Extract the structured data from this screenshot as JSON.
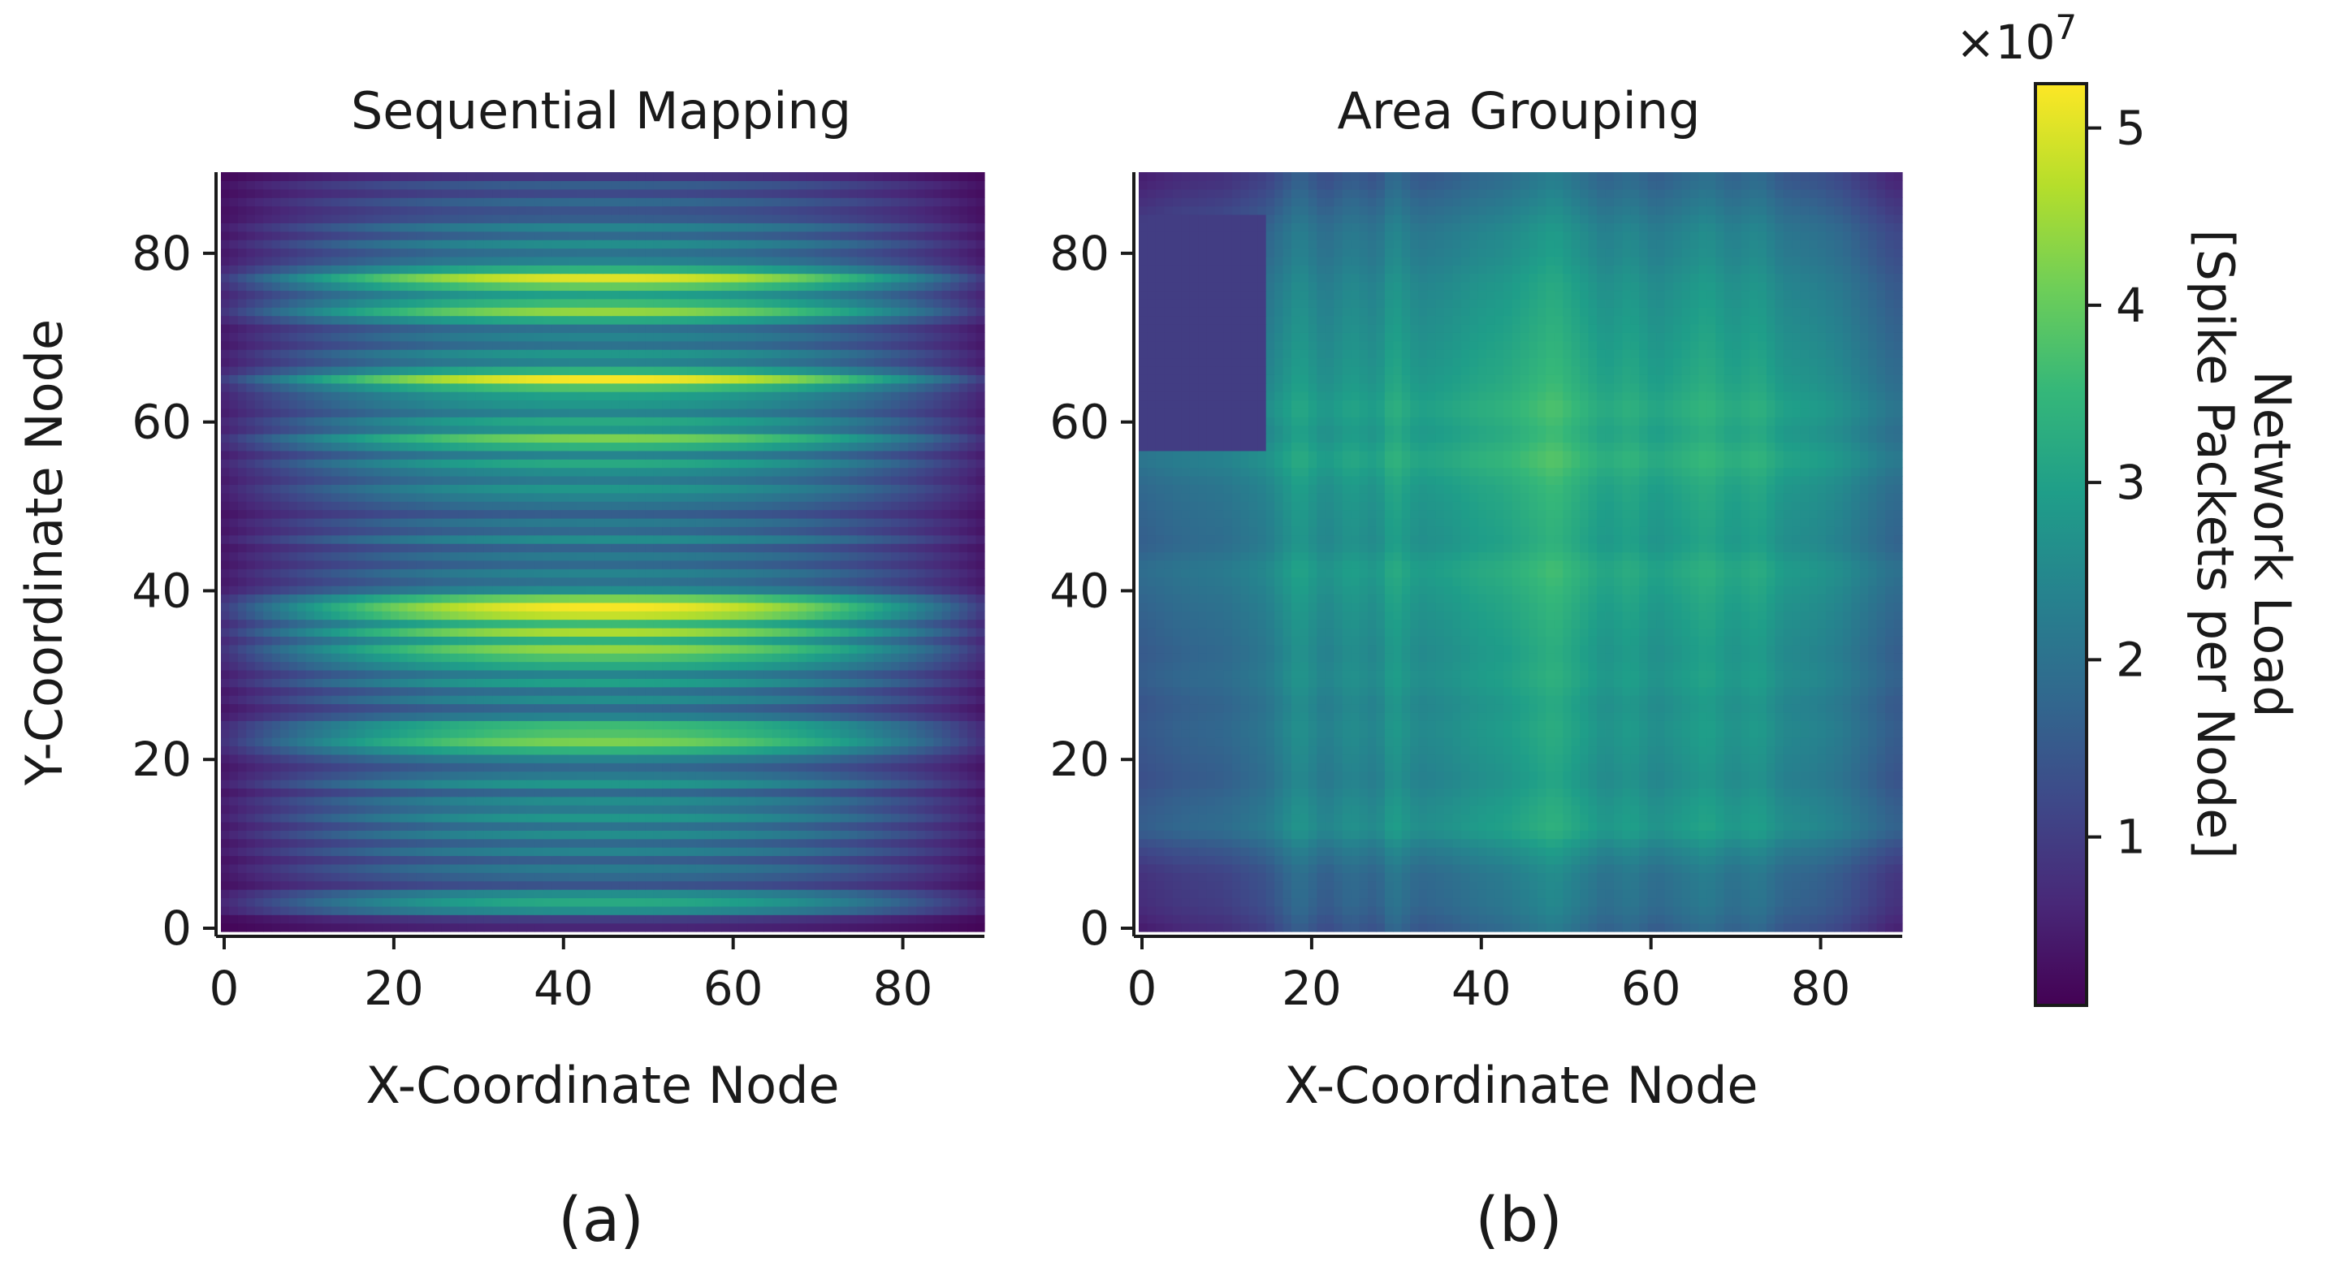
{
  "colors": {
    "viridis": [
      "#440154",
      "#482878",
      "#3e4989",
      "#31688e",
      "#26828e",
      "#1f9e89",
      "#35b779",
      "#6ece58",
      "#b5de2b",
      "#fde725"
    ],
    "axis": "#1a1a1a",
    "background": "#ffffff"
  },
  "chart_data": [
    {
      "type": "heatmap",
      "panel": "(a)",
      "title": "Sequential Mapping",
      "xlabel": "X-Coordinate Node",
      "ylabel": "Y-Coordinate Node",
      "xlim": [
        0,
        90
      ],
      "ylim": [
        0,
        90
      ],
      "xticks": [
        0,
        20,
        40,
        60,
        80
      ],
      "yticks": [
        0,
        20,
        40,
        60,
        80
      ],
      "structure": "horizontal bands; each row's load peaks near the centre column and falls off toward x=0 and x=90",
      "center_x": 45,
      "row_peak_loads": [
        [
          0,
          6000000.0
        ],
        [
          1,
          10000000.0
        ],
        [
          2,
          26000000.0
        ],
        [
          3,
          32000000.0
        ],
        [
          4,
          26000000.0
        ],
        [
          5,
          14000000.0
        ],
        [
          6,
          18000000.0
        ],
        [
          7,
          22000000.0
        ],
        [
          8,
          16000000.0
        ],
        [
          9,
          24000000.0
        ],
        [
          10,
          18000000.0
        ],
        [
          11,
          26000000.0
        ],
        [
          12,
          20000000.0
        ],
        [
          13,
          28000000.0
        ],
        [
          14,
          22000000.0
        ],
        [
          15,
          26000000.0
        ],
        [
          16,
          18000000.0
        ],
        [
          17,
          28000000.0
        ],
        [
          18,
          22000000.0
        ],
        [
          19,
          18000000.0
        ],
        [
          20,
          24000000.0
        ],
        [
          21,
          34000000.0
        ],
        [
          22,
          42000000.0
        ],
        [
          23,
          38000000.0
        ],
        [
          24,
          36000000.0
        ],
        [
          25,
          24000000.0
        ],
        [
          26,
          18000000.0
        ],
        [
          27,
          26000000.0
        ],
        [
          28,
          20000000.0
        ],
        [
          29,
          30000000.0
        ],
        [
          30,
          24000000.0
        ],
        [
          31,
          32000000.0
        ],
        [
          32,
          38000000.0
        ],
        [
          33,
          44000000.0
        ],
        [
          34,
          34000000.0
        ],
        [
          35,
          46000000.0
        ],
        [
          36,
          36000000.0
        ],
        [
          37,
          48000000.0
        ],
        [
          38,
          52000000.0
        ],
        [
          39,
          42000000.0
        ],
        [
          40,
          26000000.0
        ],
        [
          41,
          20000000.0
        ],
        [
          42,
          24000000.0
        ],
        [
          43,
          18000000.0
        ],
        [
          44,
          22000000.0
        ],
        [
          45,
          17000000.0
        ],
        [
          46,
          26000000.0
        ],
        [
          47,
          18000000.0
        ],
        [
          48,
          22000000.0
        ],
        [
          49,
          16000000.0
        ],
        [
          50,
          20000000.0
        ],
        [
          51,
          24000000.0
        ],
        [
          52,
          28000000.0
        ],
        [
          53,
          22000000.0
        ],
        [
          54,
          26000000.0
        ],
        [
          55,
          32000000.0
        ],
        [
          56,
          24000000.0
        ],
        [
          57,
          34000000.0
        ],
        [
          58,
          42000000.0
        ],
        [
          59,
          28000000.0
        ],
        [
          60,
          32000000.0
        ],
        [
          61,
          24000000.0
        ],
        [
          62,
          28000000.0
        ],
        [
          63,
          30000000.0
        ],
        [
          64,
          38000000.0
        ],
        [
          65,
          52000000.0
        ],
        [
          66,
          34000000.0
        ],
        [
          67,
          24000000.0
        ],
        [
          68,
          28000000.0
        ],
        [
          69,
          20000000.0
        ],
        [
          70,
          24000000.0
        ],
        [
          71,
          20000000.0
        ],
        [
          72,
          32000000.0
        ],
        [
          73,
          44000000.0
        ],
        [
          74,
          36000000.0
        ],
        [
          75,
          30000000.0
        ],
        [
          76,
          40000000.0
        ],
        [
          77,
          50000000.0
        ],
        [
          78,
          34000000.0
        ],
        [
          79,
          24000000.0
        ],
        [
          80,
          20000000.0
        ],
        [
          81,
          26000000.0
        ],
        [
          82,
          18000000.0
        ],
        [
          83,
          24000000.0
        ],
        [
          84,
          16000000.0
        ],
        [
          85,
          14000000.0
        ],
        [
          86,
          18000000.0
        ],
        [
          87,
          12000000.0
        ],
        [
          88,
          16000000.0
        ],
        [
          89,
          9000000.0
        ]
      ]
    },
    {
      "type": "heatmap",
      "panel": "(b)",
      "title": "Area Grouping",
      "xlabel": "X-Coordinate Node",
      "ylabel": "",
      "xlim": [
        0,
        90
      ],
      "ylim": [
        0,
        90
      ],
      "xticks": [
        0,
        20,
        40,
        60,
        80
      ],
      "yticks": [
        0,
        20,
        40,
        60,
        80
      ],
      "structure": "grid pattern: load ≈ column_weight + row_weight; low-load regions near the edges and a dark block at x<15, 57<y<85",
      "column_weights": [
        [
          0,
          2000000.0
        ],
        [
          5,
          4000000.0
        ],
        [
          10,
          5000000.0
        ],
        [
          15,
          8000000.0
        ],
        [
          19,
          14000000.0
        ],
        [
          22,
          10000000.0
        ],
        [
          25,
          13000000.0
        ],
        [
          28,
          11000000.0
        ],
        [
          30,
          16000000.0
        ],
        [
          33,
          12000000.0
        ],
        [
          36,
          13000000.0
        ],
        [
          40,
          15000000.0
        ],
        [
          43,
          16000000.0
        ],
        [
          46,
          18000000.0
        ],
        [
          49,
          20000000.0
        ],
        [
          52,
          17000000.0
        ],
        [
          55,
          14000000.0
        ],
        [
          58,
          16000000.0
        ],
        [
          61,
          13000000.0
        ],
        [
          64,
          15000000.0
        ],
        [
          67,
          17000000.0
        ],
        [
          70,
          14000000.0
        ],
        [
          73,
          16000000.0
        ],
        [
          76,
          12000000.0
        ],
        [
          80,
          11000000.0
        ],
        [
          83,
          9000000.0
        ],
        [
          86,
          6000000.0
        ],
        [
          89,
          3000000.0
        ]
      ],
      "row_weights": [
        [
          0,
          2000000.0
        ],
        [
          3,
          5000000.0
        ],
        [
          7,
          6000000.0
        ],
        [
          10,
          10000000.0
        ],
        [
          12,
          14000000.0
        ],
        [
          15,
          13000000.0
        ],
        [
          18,
          11000000.0
        ],
        [
          21,
          12000000.0
        ],
        [
          24,
          13000000.0
        ],
        [
          27,
          12000000.0
        ],
        [
          30,
          14000000.0
        ],
        [
          33,
          13000000.0
        ],
        [
          36,
          14000000.0
        ],
        [
          39,
          15000000.0
        ],
        [
          43,
          17000000.0
        ],
        [
          46,
          14000000.0
        ],
        [
          50,
          15000000.0
        ],
        [
          53,
          16000000.0
        ],
        [
          56,
          19000000.0
        ],
        [
          59,
          16000000.0
        ],
        [
          62,
          18000000.0
        ],
        [
          65,
          16000000.0
        ],
        [
          68,
          15000000.0
        ],
        [
          71,
          14000000.0
        ],
        [
          74,
          13000000.0
        ],
        [
          77,
          12000000.0
        ],
        [
          80,
          10000000.0
        ],
        [
          83,
          9000000.0
        ],
        [
          86,
          6000000.0
        ],
        [
          89,
          3000000.0
        ]
      ],
      "dark_regions": [
        {
          "x": [
            0,
            15
          ],
          "y": [
            57,
            85
          ],
          "max_load": 10000000.0
        }
      ]
    }
  ],
  "colorbar": {
    "label_line1": "Network Load",
    "label_line2": "[Spike Packets per Node]",
    "multiplier": "×10",
    "exponent": "7",
    "range": [
      500000.0,
      52500000.0
    ],
    "ticks": [
      1,
      2,
      3,
      4,
      5
    ],
    "tick_labels": [
      "1",
      "2",
      "3",
      "4",
      "5"
    ],
    "scale": 10000000.0,
    "colormap": "viridis"
  },
  "panel_labels": [
    "(a)",
    "(b)"
  ]
}
